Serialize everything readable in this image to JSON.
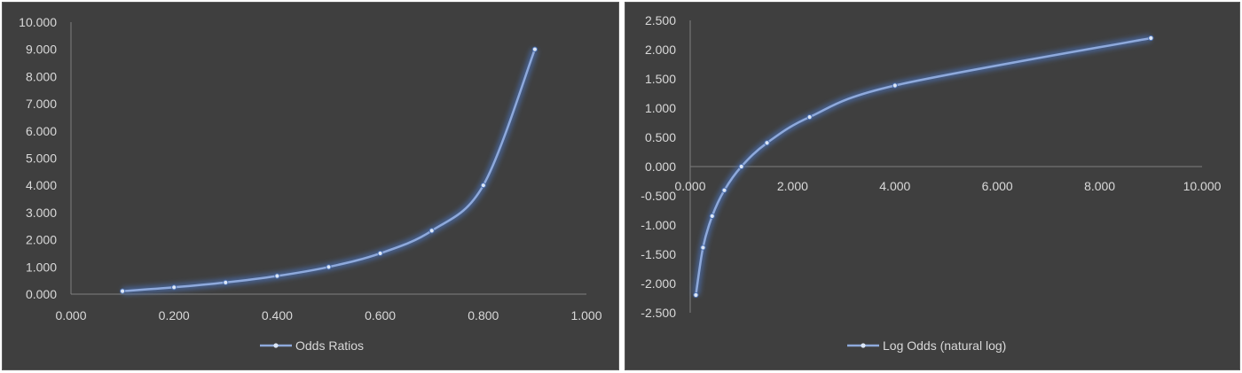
{
  "colors": {
    "background": "#3f3f3f",
    "series_line": "#8ea9db",
    "glow": "#4a6fb0",
    "marker": "#dce6f5",
    "axis": "#7f7f7f",
    "text": "#d9d9d9"
  },
  "chart_data": [
    {
      "type": "scatter",
      "series": [
        {
          "name": "Odds Ratios",
          "x": [
            0.1,
            0.2,
            0.3,
            0.4,
            0.5,
            0.6,
            0.7,
            0.8,
            0.9
          ],
          "y": [
            0.111,
            0.25,
            0.429,
            0.667,
            1.0,
            1.5,
            2.333,
            4.0,
            9.0
          ]
        }
      ],
      "xlim": [
        0,
        1
      ],
      "ylim": [
        0,
        10
      ],
      "x_ticks": [
        "0.000",
        "0.200",
        "0.400",
        "0.600",
        "0.800",
        "1.000"
      ],
      "y_ticks": [
        "0.000",
        "1.000",
        "2.000",
        "3.000",
        "4.000",
        "5.000",
        "6.000",
        "7.000",
        "8.000",
        "9.000",
        "10.000"
      ],
      "smooth": true,
      "grid": false,
      "legend": "bottom"
    },
    {
      "type": "scatter",
      "series": [
        {
          "name": "Log Odds (natural log)",
          "x": [
            0.111,
            0.25,
            0.429,
            0.667,
            1.0,
            1.5,
            2.333,
            4.0,
            9.0
          ],
          "y": [
            -2.197,
            -1.386,
            -0.847,
            -0.405,
            0.0,
            0.405,
            0.847,
            1.386,
            2.197
          ]
        }
      ],
      "xlim": [
        0,
        10
      ],
      "ylim": [
        -2.5,
        2.5
      ],
      "x_ticks": [
        "0.000",
        "2.000",
        "4.000",
        "6.000",
        "8.000",
        "10.000"
      ],
      "y_ticks": [
        "-2.500",
        "-2.000",
        "-1.500",
        "-1.000",
        "-0.500",
        "0.000",
        "0.500",
        "1.000",
        "1.500",
        "2.000",
        "2.500"
      ],
      "smooth": true,
      "grid": false,
      "legend": "bottom"
    }
  ]
}
